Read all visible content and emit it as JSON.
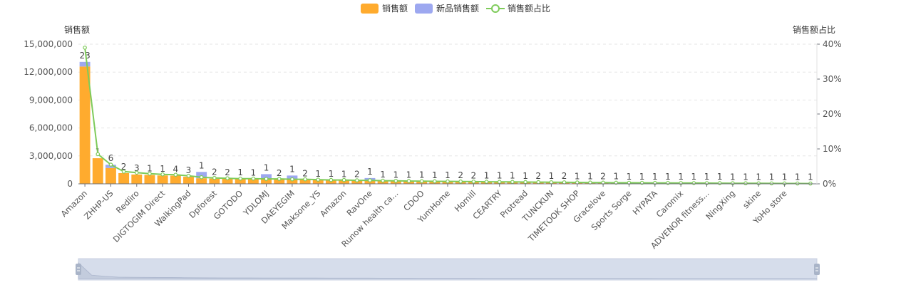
{
  "chart_data": {
    "type": "bar",
    "legend": {
      "position": "top-center",
      "items": [
        {
          "name": "销售额",
          "color": "#FFAB2E",
          "kind": "bar"
        },
        {
          "name": "新品销售额",
          "color": "#9DA8F0",
          "kind": "bar"
        },
        {
          "name": "销售额占比",
          "color": "#7ECB5A",
          "kind": "line"
        }
      ]
    },
    "y_left": {
      "name": "销售额",
      "min": 0,
      "max": 15000000,
      "ticks": [
        "0",
        "3,000,000",
        "6,000,000",
        "9,000,000",
        "12,000,000",
        "15,000,000"
      ]
    },
    "y_right": {
      "name": "销售额占比",
      "min": 0,
      "max": 40,
      "ticks": [
        "0%",
        "10%",
        "20%",
        "30%",
        "40%"
      ]
    },
    "grid": true,
    "categories": [
      "Amazon",
      "",
      "ZHHP-US",
      "",
      "Redliro",
      "",
      "DIGTOGIM Direct",
      "",
      "WalkingPad",
      "",
      "Dpforest",
      "",
      "GOTODO",
      "",
      "YDLOMJ",
      "",
      "DAEYEGIM",
      "",
      "Maksone_YS",
      "",
      "Amazon",
      "",
      "RavOne",
      "",
      "Runow health ca...",
      "",
      "CDOO",
      "",
      "YumHome",
      "",
      "Homill",
      "",
      "CEARTRY",
      "",
      "Protread",
      "",
      "TUNCKUN",
      "",
      "TIMETOOK SHOP",
      "",
      "Gracelove",
      "",
      "Sports Sorge",
      "",
      "HYPATA",
      "",
      "Caromix",
      "",
      "ADVENOR fitness...",
      "",
      "NingXing",
      "",
      "skine",
      "",
      "YoHo store",
      "",
      ""
    ],
    "series": [
      {
        "name": "销售额",
        "values": [
          12600000,
          2750000,
          1700000,
          1150000,
          1000000,
          950000,
          900000,
          880000,
          760000,
          600000,
          560000,
          540000,
          520000,
          500000,
          480000,
          460000,
          440000,
          420000,
          400000,
          380000,
          360000,
          340000,
          320000,
          300000,
          280000,
          265000,
          250000,
          240000,
          230000,
          220000,
          210000,
          200000,
          190000,
          180000,
          170000,
          160000,
          150000,
          140000,
          130000,
          120000,
          110000,
          100000,
          95000,
          90000,
          85000,
          80000,
          75000,
          70000,
          65000,
          60000,
          55000,
          50000,
          45000,
          40000,
          35000,
          30000,
          25000
        ]
      },
      {
        "name": "新品销售额",
        "values": [
          500000,
          0,
          350000,
          0,
          0,
          0,
          0,
          0,
          0,
          680000,
          0,
          0,
          0,
          0,
          560000,
          0,
          450000,
          0,
          0,
          0,
          0,
          0,
          300000,
          0,
          0,
          0,
          0,
          0,
          0,
          0,
          0,
          0,
          0,
          0,
          0,
          0,
          0,
          0,
          0,
          0,
          0,
          0,
          0,
          0,
          0,
          0,
          0,
          0,
          0,
          0,
          0,
          0,
          0,
          0,
          0,
          0,
          0
        ]
      },
      {
        "name": "销售额占比",
        "values": [
          39,
          8.5,
          5.5,
          3.5,
          3.2,
          2.9,
          2.7,
          2.6,
          2.3,
          1.9,
          1.7,
          1.6,
          1.5,
          1.5,
          1.4,
          1.4,
          1.3,
          1.3,
          1.2,
          1.1,
          1.1,
          1.0,
          1.0,
          0.9,
          0.85,
          0.8,
          0.75,
          0.72,
          0.7,
          0.67,
          0.64,
          0.6,
          0.57,
          0.55,
          0.52,
          0.49,
          0.46,
          0.43,
          0.4,
          0.37,
          0.34,
          0.31,
          0.3,
          0.28,
          0.26,
          0.25,
          0.23,
          0.22,
          0.2,
          0.19,
          0.17,
          0.16,
          0.14,
          0.13,
          0.11,
          0.1,
          0.08
        ]
      }
    ],
    "counts": [
      "23",
      "1",
      "6",
      "2",
      "3",
      "1",
      "1",
      "4",
      "3",
      "1",
      "2",
      "2",
      "1",
      "1",
      "1",
      "2",
      "1",
      "2",
      "1",
      "1",
      "1",
      "2",
      "1",
      "1",
      "1",
      "1",
      "1",
      "1",
      "1",
      "2",
      "2",
      "1",
      "1",
      "1",
      "1",
      "2",
      "1",
      "2",
      "1",
      "1",
      "2",
      "1",
      "1",
      "1",
      "1",
      "1",
      "1",
      "1",
      "1",
      "1",
      "1",
      "1",
      "1",
      "1",
      "1",
      "1",
      "1"
    ]
  }
}
